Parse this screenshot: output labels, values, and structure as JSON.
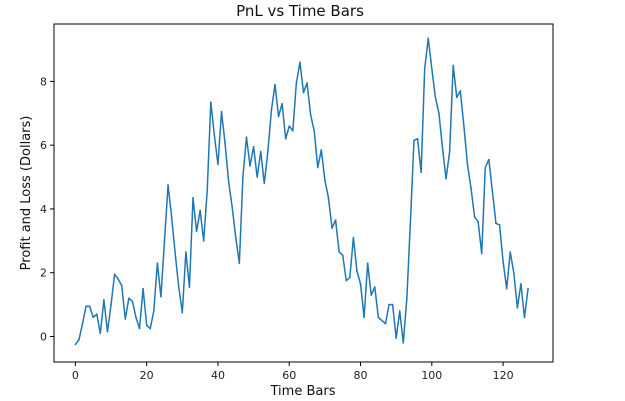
{
  "chart_data": {
    "type": "line",
    "title": "PnL vs Time Bars",
    "xlabel": "Time Bars",
    "ylabel": "Profit and Loss (Dollars)",
    "xlim": [
      -6,
      134
    ],
    "ylim": [
      -0.8,
      9.8
    ],
    "xticks": [
      0,
      20,
      40,
      60,
      80,
      100,
      120
    ],
    "yticks": [
      0,
      2,
      4,
      6,
      8
    ],
    "grid": false,
    "line_color": "#1f77b4",
    "series": [
      {
        "values": [
          -0.25,
          -0.1,
          0.4,
          0.95,
          0.95,
          0.6,
          0.7,
          0.1,
          1.15,
          0.15,
          1.0,
          1.95,
          1.8,
          1.6,
          0.55,
          1.2,
          1.1,
          0.6,
          0.25,
          1.5,
          0.35,
          0.25,
          0.8,
          2.3,
          1.25,
          3.0,
          4.75,
          3.75,
          2.6,
          1.55,
          0.75,
          2.65,
          1.55,
          4.35,
          3.3,
          3.95,
          3.0,
          4.6,
          7.35,
          6.3,
          5.4,
          7.05,
          6.05,
          4.85,
          4.05,
          3.1,
          2.3,
          5.0,
          6.25,
          5.35,
          5.95,
          5.0,
          5.8,
          4.8,
          5.8,
          7.1,
          7.9,
          6.9,
          7.3,
          6.2,
          6.6,
          6.45,
          7.95,
          8.6,
          7.65,
          7.95,
          6.95,
          6.45,
          5.3,
          5.85,
          4.9,
          4.35,
          3.4,
          3.65,
          2.65,
          2.55,
          1.75,
          1.85,
          3.1,
          2.05,
          1.65,
          0.6,
          2.3,
          1.3,
          1.55,
          0.6,
          0.5,
          0.4,
          1.0,
          1.0,
          -0.05,
          0.8,
          -0.2,
          1.2,
          3.6,
          6.15,
          6.2,
          5.15,
          8.4,
          9.35,
          8.4,
          7.5,
          7.0,
          5.9,
          4.95,
          5.8,
          8.5,
          7.5,
          7.7,
          6.6,
          5.4,
          4.65,
          3.75,
          3.6,
          2.6,
          5.3,
          5.55,
          4.55,
          3.55,
          3.5,
          2.35,
          1.5,
          2.65,
          2.0,
          0.9,
          1.65,
          0.6,
          1.5
        ]
      }
    ]
  }
}
